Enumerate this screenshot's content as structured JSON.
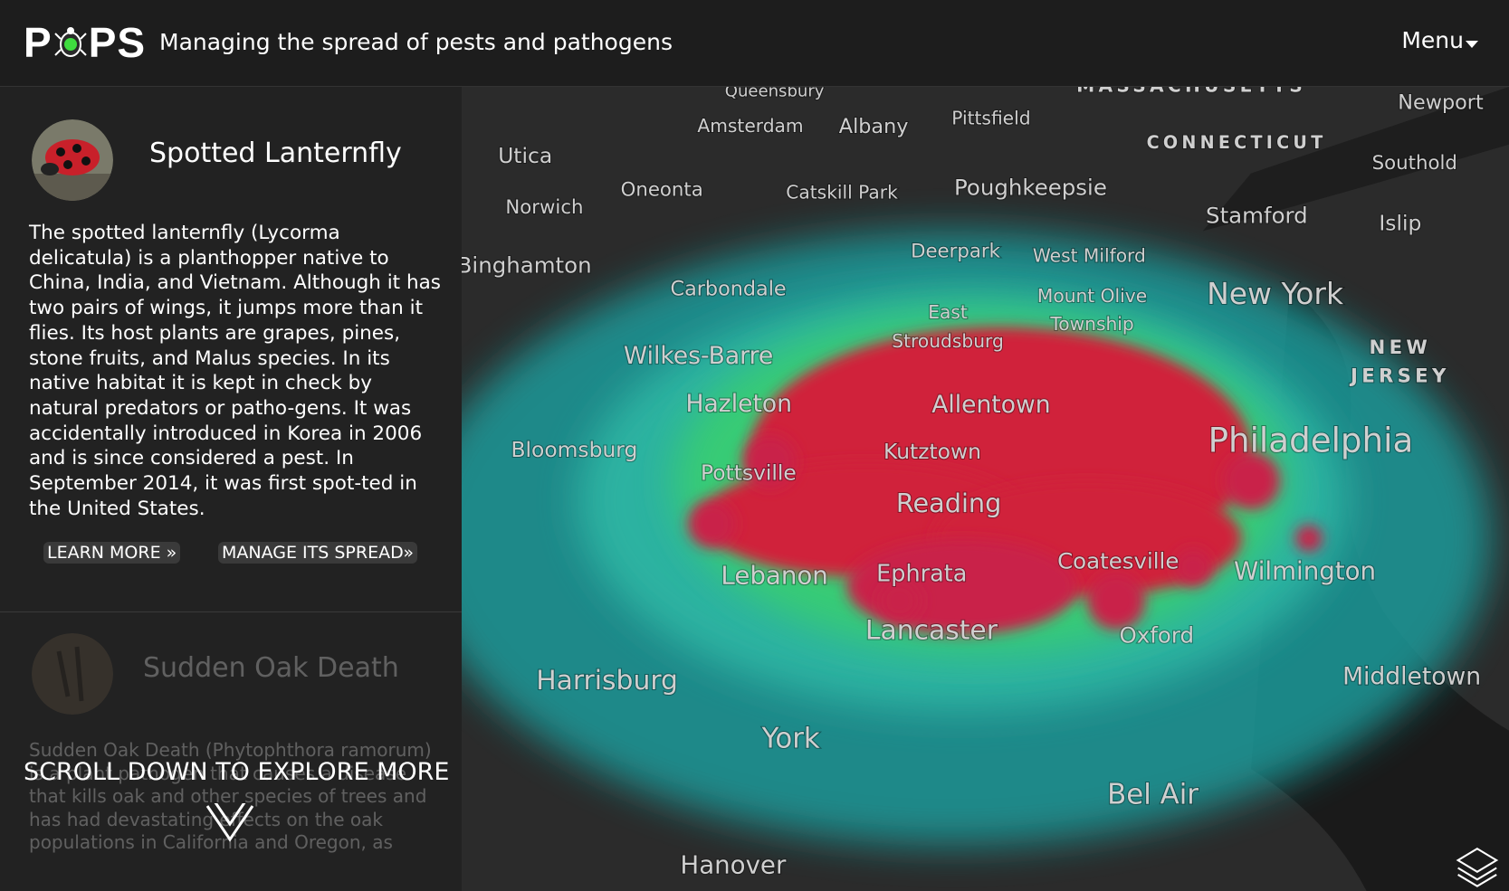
{
  "header": {
    "logo": [
      "P",
      "PS"
    ],
    "tagline": "Managing the spread of pests and pathogens",
    "menu": "Menu"
  },
  "cards": [
    {
      "title": "Spotted Lanternfly",
      "description": "The spotted lanternfly (Lycorma delicatula) is a planthopper native to China, India, and Vietnam. Although it has two pairs of wings, it jumps more than it flies. Its host plants are grapes, pines, stone fruits, and Malus species. In its native habitat it is kept in check by natural predators or patho-gens. It was accidentally introduced in Korea in 2006 and is since considered a pest. In September 2014, it was first spot-ted in the United States.",
      "links": [
        "LEARN MORE »",
        "MANAGE ITS SPREAD»"
      ]
    },
    {
      "title": "Sudden Oak Death",
      "description": "Sudden Oak Death (Phytophthora ramorum) is a plant pathogen that causes a disease that kills oak and other species of trees and has had devastating effects on the oak populations in California and Oregon, as"
    }
  ],
  "scroll_hint": "SCROLL DOWN TO EXPLORE MORE",
  "map_labels": [
    "Queensbury",
    "Amsterdam",
    "Albany",
    "Pittsfield",
    "MASSACHUSETTS",
    "CONNECTICUT",
    "Newport",
    "Southold",
    "Utica",
    "Oneonta",
    "Catskill Park",
    "Poughkeepsie",
    "Stamford",
    "Islip",
    "Norwich",
    "Binghamton",
    "Deerpark",
    "West Milford",
    "Carbondale",
    "New York",
    "Mount Olive",
    "Township",
    "East",
    "Stroudsburg",
    "Wilkes-Barre",
    "NEW",
    "JERSEY",
    "Hazleton",
    "Allentown",
    "Philadelphia",
    "Bloomsburg",
    "Kutztown",
    "Pottsville",
    "Reading",
    "Lebanon",
    "Ephrata",
    "Coatesville",
    "Wilmington",
    "Lancaster",
    "Oxford",
    "Harrisburg",
    "Middletown",
    "York",
    "Bel Air",
    "Hanover"
  ]
}
